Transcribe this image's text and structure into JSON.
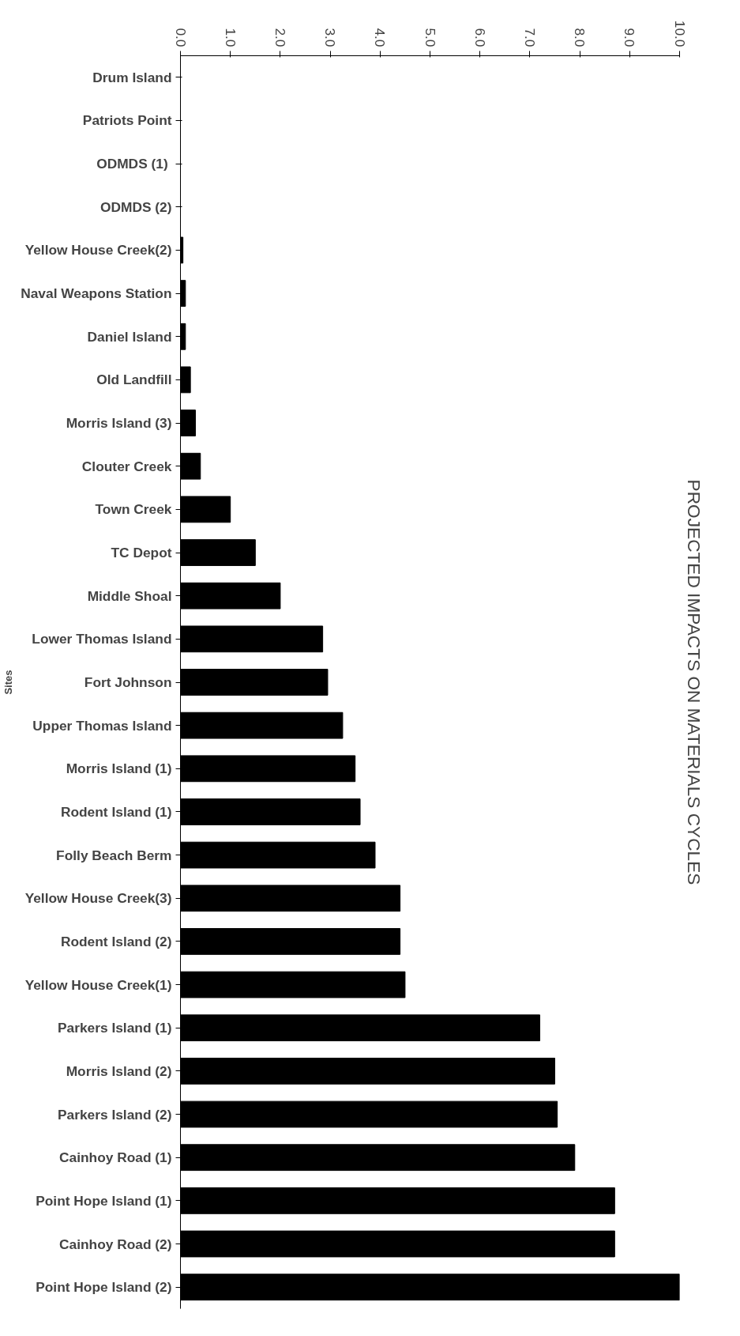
{
  "chart_data": {
    "type": "bar",
    "orientation": "horizontal",
    "title": "PROJECTED IMPACTS ON MATERIALS CYCLES",
    "ylabel": "Sites",
    "categories": [
      "Drum Island",
      "Patriots Point",
      "ODMDS  (1)",
      "ODMDS (2)",
      "Yellow House Creek(2)",
      "Naval Weapons Station",
      "Daniel Island",
      "Old Landfill",
      "Morris Island (3)",
      "Clouter Creek",
      "Town Creek",
      "TC Depot",
      "Middle Shoal",
      "Lower Thomas Island",
      "Fort Johnson",
      "Upper Thomas Island",
      "Morris Island (1)",
      "Rodent Island (1)",
      "Folly Beach Berm",
      "Yellow House Creek(3)",
      "Rodent Island (2)",
      "Yellow House Creek(1)",
      "Parkers Island (1)",
      "Morris Island (2)",
      "Parkers Island (2)",
      "Cainhoy Road (1)",
      "Point Hope Island (1)",
      "Cainhoy Road (2)",
      "Point Hope Island (2)"
    ],
    "values": [
      0,
      0,
      0,
      0,
      0.05,
      0.1,
      0.1,
      0.2,
      0.3,
      0.4,
      1.0,
      1.5,
      2.0,
      2.85,
      2.95,
      3.25,
      3.5,
      3.6,
      3.9,
      4.4,
      4.4,
      4.5,
      7.2,
      7.5,
      7.55,
      7.9,
      8.7,
      8.7,
      10.0
    ],
    "color": "#000000",
    "xlim": [
      0,
      10
    ],
    "xticks": [
      {
        "value": 0,
        "label": "0.0"
      },
      {
        "value": 1,
        "label": "1.0"
      },
      {
        "value": 2,
        "label": "2.0"
      },
      {
        "value": 3,
        "label": "3.0"
      },
      {
        "value": 4,
        "label": "4.0"
      },
      {
        "value": 5,
        "label": "5.0"
      },
      {
        "value": 6,
        "label": "6.0"
      },
      {
        "value": 7,
        "label": "7.0"
      },
      {
        "value": 8,
        "label": "8.0"
      },
      {
        "value": 9,
        "label": "9.0"
      },
      {
        "value": 10,
        "label": "10.0"
      }
    ],
    "grid": false
  }
}
